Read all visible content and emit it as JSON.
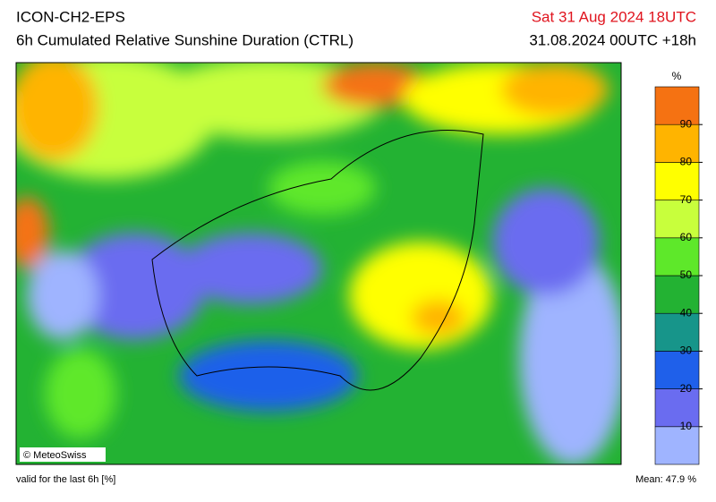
{
  "header": {
    "model": "ICON-CH2-EPS",
    "title": "6h Cumulated Relative Sunshine Duration (CTRL)",
    "valid_time": "Sat 31 Aug 2024 18UTC",
    "run": "31.08.2024 00UTC +18h"
  },
  "colorbar": {
    "unit": "%",
    "ticks": [
      10,
      20,
      30,
      40,
      50,
      60,
      70,
      80,
      90
    ],
    "colors": [
      "#9fb4ff",
      "#6a6cf0",
      "#1f60ea",
      "#17958a",
      "#23b233",
      "#5ee82a",
      "#c8ff3c",
      "#ffff00",
      "#ffb400",
      "#f57212"
    ]
  },
  "map": {
    "credit": "© MeteoSwiss"
  },
  "footer": {
    "note": "valid for the last 6h [%]",
    "mean": "Mean:  47.9 %"
  }
}
